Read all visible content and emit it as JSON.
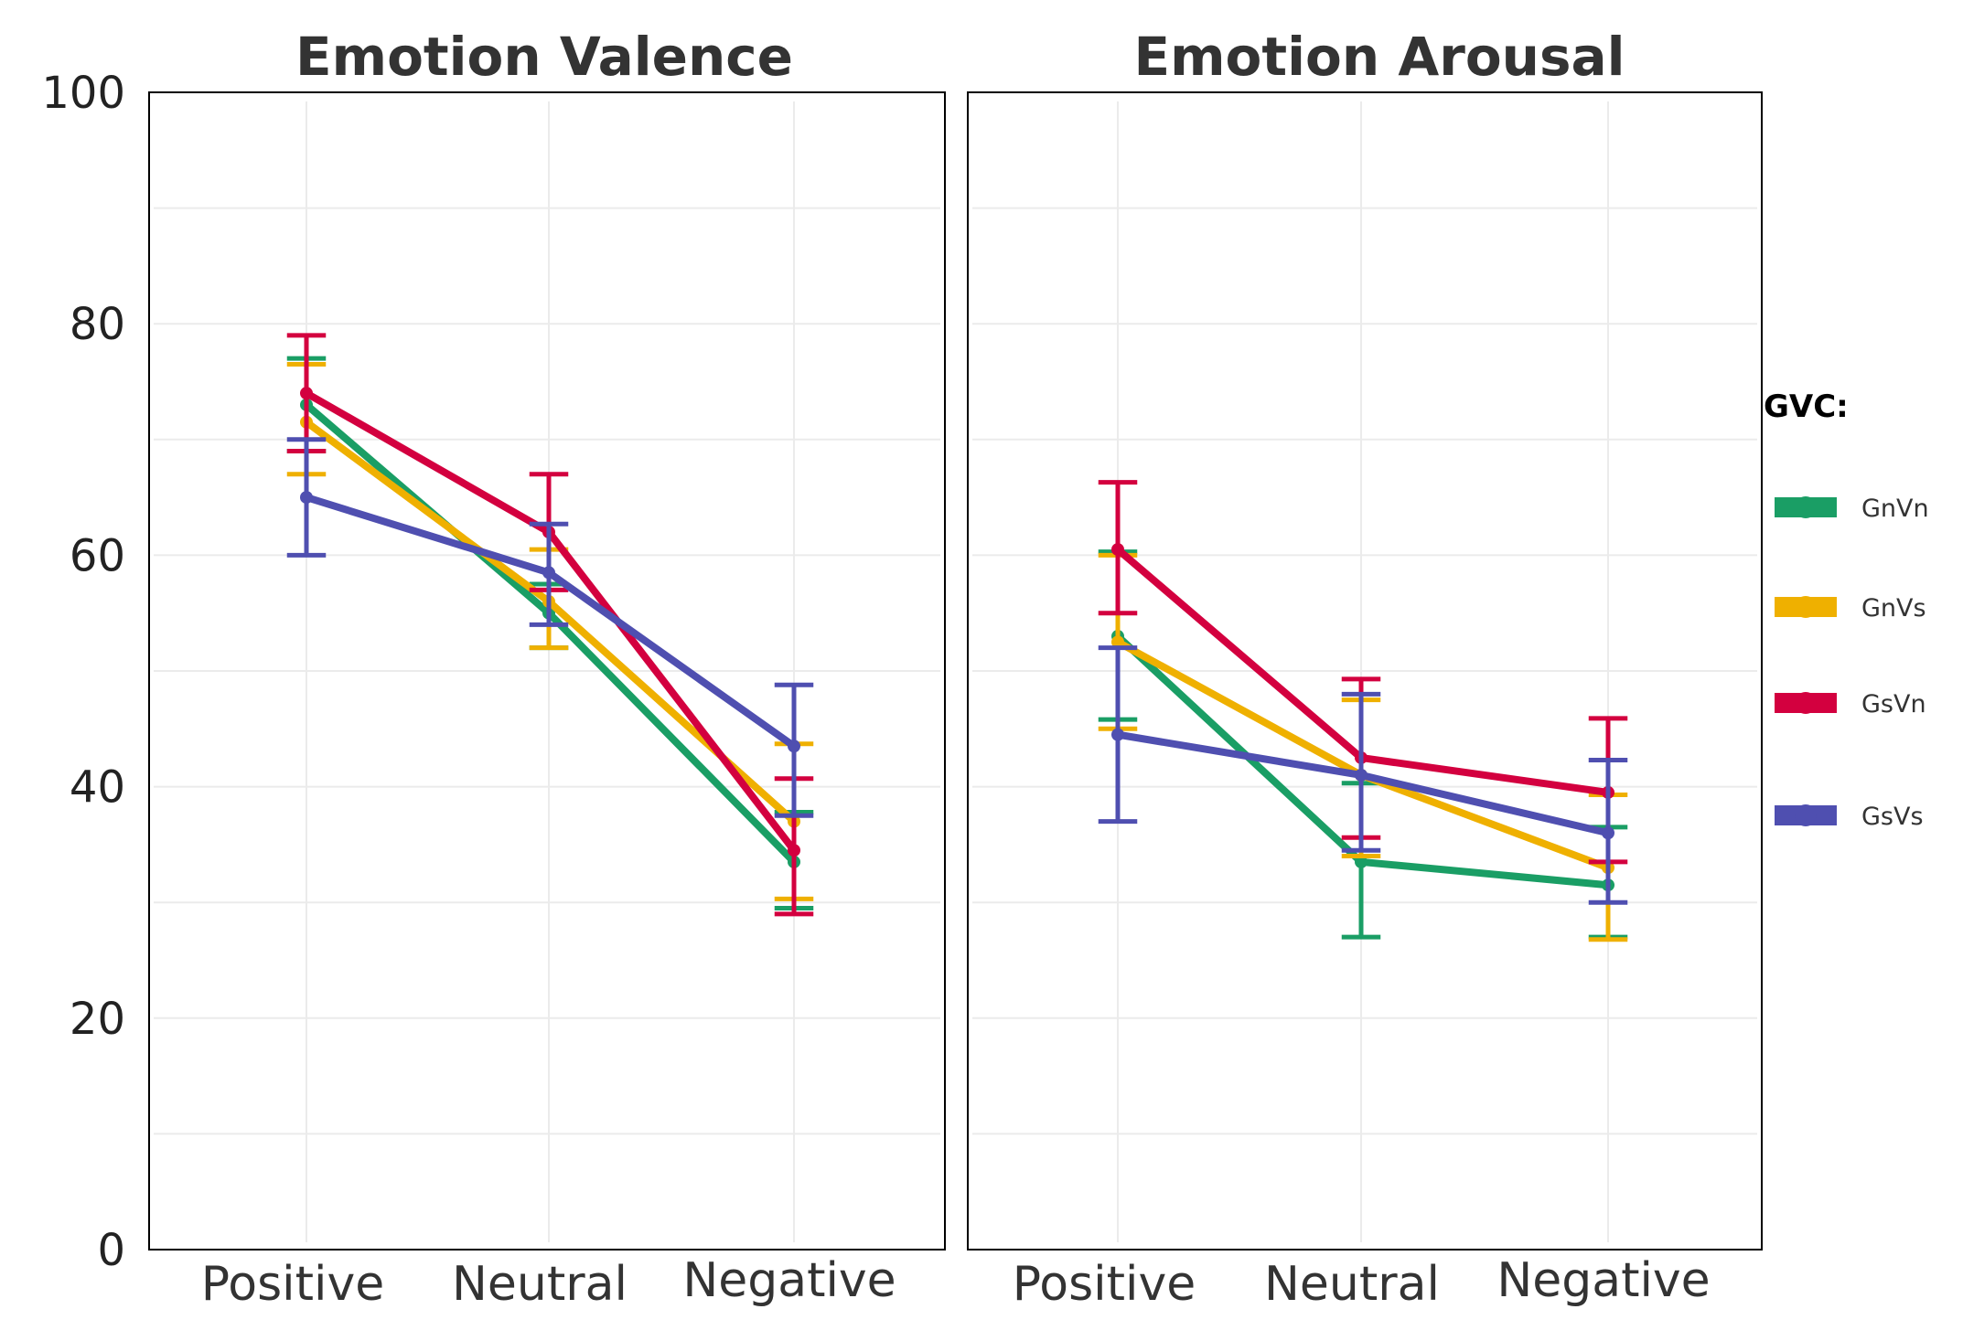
{
  "chart_data": [
    {
      "type": "line",
      "title": "Emotion Valence",
      "categories": [
        "Positive",
        "Neutral",
        "Negative"
      ],
      "ylim": [
        0,
        100
      ],
      "yticks": [
        0,
        20,
        40,
        60,
        80,
        100
      ],
      "grid": true,
      "series": [
        {
          "name": "GnVn",
          "values": [
            73,
            55,
            33.5
          ],
          "err_low": [
            69,
            52,
            29.5
          ],
          "err_high": [
            77,
            57.5,
            37.8
          ]
        },
        {
          "name": "GnVs",
          "values": [
            71.5,
            56,
            37
          ],
          "err_low": [
            67,
            52,
            30.3
          ],
          "err_high": [
            76.5,
            60.5,
            43.7
          ]
        },
        {
          "name": "GsVn",
          "values": [
            74,
            62,
            34.5
          ],
          "err_low": [
            69,
            57,
            29
          ],
          "err_high": [
            79,
            67,
            40.7
          ]
        },
        {
          "name": "GsVs",
          "values": [
            65,
            58.5,
            43.5
          ],
          "err_low": [
            60,
            54,
            37.5
          ],
          "err_high": [
            70,
            62.7,
            48.8
          ]
        }
      ]
    },
    {
      "type": "line",
      "title": "Emotion Arousal",
      "categories": [
        "Positive",
        "Neutral",
        "Negative"
      ],
      "ylim": [
        0,
        100
      ],
      "grid": true,
      "series": [
        {
          "name": "GnVn",
          "values": [
            53,
            33.5,
            31.5
          ],
          "err_low": [
            45.8,
            27,
            27
          ],
          "err_high": [
            60.3,
            40.3,
            36.5
          ]
        },
        {
          "name": "GnVs",
          "values": [
            52.5,
            41,
            33
          ],
          "err_low": [
            45,
            34,
            26.8
          ],
          "err_high": [
            60,
            47.5,
            39.3
          ]
        },
        {
          "name": "GsVn",
          "values": [
            60.5,
            42.5,
            39.5
          ],
          "err_low": [
            55,
            35.6,
            33.5
          ],
          "err_high": [
            66.3,
            49.3,
            45.9
          ]
        },
        {
          "name": "GsVs",
          "values": [
            44.5,
            41,
            36
          ],
          "err_low": [
            37,
            34.5,
            30
          ],
          "err_high": [
            52,
            48,
            42.3
          ]
        }
      ]
    }
  ],
  "legend": {
    "title": "GVC:",
    "position": "right",
    "items": [
      {
        "name": "GnVn",
        "color": "#1a9e65"
      },
      {
        "name": "GnVs",
        "color": "#efb000"
      },
      {
        "name": "GsVn",
        "color": "#d3003f"
      },
      {
        "name": "GsVs",
        "color": "#4f4fb0"
      }
    ]
  }
}
